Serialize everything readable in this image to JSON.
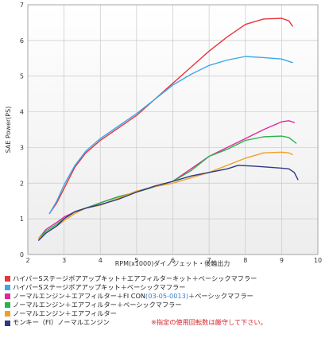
{
  "chart_data": {
    "type": "line",
    "title": "",
    "xlabel": "RPM(x1000)ダイノジェット・後輪出力",
    "ylabel": "SAE Power(PS)",
    "xlim": [
      2,
      10
    ],
    "ylim": [
      0,
      7
    ],
    "xticks": [
      "2",
      "3",
      "4",
      "5",
      "6",
      "7",
      "8",
      "9",
      "10"
    ],
    "yticks": [
      "0",
      "1",
      "2",
      "3",
      "4",
      "5",
      "6",
      "7"
    ],
    "grid": true,
    "legend_position": "bottom",
    "series": [
      {
        "name": "ハイパーSステージボアアップキット＋エアフィルターキット＋ベーシックマフラー",
        "color": "#e8353e",
        "points": [
          [
            2.6,
            1.15
          ],
          [
            2.8,
            1.45
          ],
          [
            3,
            1.85
          ],
          [
            3.3,
            2.45
          ],
          [
            3.6,
            2.85
          ],
          [
            4,
            3.2
          ],
          [
            4.5,
            3.55
          ],
          [
            5,
            3.9
          ],
          [
            5.5,
            4.35
          ],
          [
            6,
            4.8
          ],
          [
            6.5,
            5.25
          ],
          [
            7,
            5.7
          ],
          [
            7.5,
            6.1
          ],
          [
            8,
            6.45
          ],
          [
            8.5,
            6.6
          ],
          [
            9,
            6.62
          ],
          [
            9.2,
            6.55
          ],
          [
            9.3,
            6.4
          ]
        ]
      },
      {
        "name": "ハイパーSステージボアアップキット＋ベーシックマフラー",
        "color": "#3aa9ea",
        "points": [
          [
            2.6,
            1.15
          ],
          [
            2.8,
            1.5
          ],
          [
            3,
            1.95
          ],
          [
            3.3,
            2.5
          ],
          [
            3.6,
            2.9
          ],
          [
            4,
            3.25
          ],
          [
            4.5,
            3.6
          ],
          [
            5,
            3.95
          ],
          [
            5.5,
            4.35
          ],
          [
            6,
            4.75
          ],
          [
            6.5,
            5.05
          ],
          [
            7,
            5.3
          ],
          [
            7.5,
            5.45
          ],
          [
            8,
            5.55
          ],
          [
            8.5,
            5.52
          ],
          [
            9,
            5.48
          ],
          [
            9.3,
            5.38
          ]
        ]
      },
      {
        "name": "ノーマルエンジン＋エアフィルター＋FI CON（03-05-0013）＋ベーシックマフラー",
        "color": "#e0289a",
        "points": [
          [
            2.3,
            0.45
          ],
          [
            2.5,
            0.7
          ],
          [
            2.8,
            0.9
          ],
          [
            3,
            1.05
          ],
          [
            3.3,
            1.2
          ],
          [
            3.6,
            1.3
          ],
          [
            4,
            1.45
          ],
          [
            4.5,
            1.62
          ],
          [
            5,
            1.75
          ],
          [
            5.5,
            1.9
          ],
          [
            6,
            2.05
          ],
          [
            6.5,
            2.4
          ],
          [
            7,
            2.75
          ],
          [
            7.5,
            3.0
          ],
          [
            8,
            3.25
          ],
          [
            8.5,
            3.5
          ],
          [
            9,
            3.72
          ],
          [
            9.2,
            3.75
          ],
          [
            9.35,
            3.7
          ]
        ]
      },
      {
        "name": "ノーマルエンジン＋エアフィルター＋ベーシックマフラー",
        "color": "#2bb24c",
        "points": [
          [
            2.3,
            0.45
          ],
          [
            2.5,
            0.65
          ],
          [
            2.8,
            0.85
          ],
          [
            3,
            1.0
          ],
          [
            3.3,
            1.2
          ],
          [
            3.6,
            1.3
          ],
          [
            4,
            1.45
          ],
          [
            4.5,
            1.62
          ],
          [
            5,
            1.75
          ],
          [
            5.5,
            1.9
          ],
          [
            6,
            2.05
          ],
          [
            6.5,
            2.35
          ],
          [
            7,
            2.75
          ],
          [
            7.5,
            2.95
          ],
          [
            8,
            3.2
          ],
          [
            8.5,
            3.3
          ],
          [
            9,
            3.32
          ],
          [
            9.2,
            3.28
          ],
          [
            9.4,
            3.12
          ]
        ]
      },
      {
        "name": "ノーマルエンジン＋エアフィルター",
        "color": "#f0a028",
        "points": [
          [
            2.3,
            0.45
          ],
          [
            2.5,
            0.6
          ],
          [
            2.8,
            0.8
          ],
          [
            3,
            0.95
          ],
          [
            3.3,
            1.15
          ],
          [
            3.6,
            1.3
          ],
          [
            4,
            1.38
          ],
          [
            4.5,
            1.58
          ],
          [
            5,
            1.78
          ],
          [
            5.5,
            1.9
          ],
          [
            6,
            2.0
          ],
          [
            6.5,
            2.15
          ],
          [
            7,
            2.3
          ],
          [
            7.5,
            2.5
          ],
          [
            8,
            2.7
          ],
          [
            8.5,
            2.85
          ],
          [
            9,
            2.87
          ],
          [
            9.2,
            2.85
          ],
          [
            9.3,
            2.8
          ]
        ]
      },
      {
        "name": "モンキー（FI）ノーマルエンジン",
        "color": "#2a3a86",
        "points": [
          [
            2.3,
            0.4
          ],
          [
            2.5,
            0.6
          ],
          [
            2.8,
            0.8
          ],
          [
            3,
            1.0
          ],
          [
            3.3,
            1.2
          ],
          [
            3.6,
            1.3
          ],
          [
            4,
            1.4
          ],
          [
            4.5,
            1.55
          ],
          [
            5,
            1.75
          ],
          [
            5.5,
            1.92
          ],
          [
            6,
            2.05
          ],
          [
            6.5,
            2.2
          ],
          [
            7,
            2.3
          ],
          [
            7.5,
            2.4
          ],
          [
            7.8,
            2.5
          ],
          [
            8.2,
            2.48
          ],
          [
            8.6,
            2.45
          ],
          [
            9,
            2.42
          ],
          [
            9.2,
            2.4
          ],
          [
            9.35,
            2.3
          ],
          [
            9.45,
            2.1
          ]
        ]
      }
    ]
  },
  "legend": {
    "items": [
      {
        "color": "#e8353e",
        "label": "ハイパーSステージボアアップキット＋エアフィルターキット＋ベーシックマフラー"
      },
      {
        "color": "#3aa9ea",
        "label": "ハイパーSステージボアアップキット＋ベーシックマフラー"
      },
      {
        "color": "#e0289a",
        "label": "ノーマルエンジン＋エアフィルター＋FI CON",
        "code": "(03-05-0013)",
        "label_after": "＋ベーシックマフラー"
      },
      {
        "color": "#2bb24c",
        "label": "ノーマルエンジン＋エアフィルター＋ベーシックマフラー"
      },
      {
        "color": "#f0a028",
        "label": "ノーマルエンジン＋エアフィルター"
      },
      {
        "color": "#2a3a86",
        "label": "モンキー（FI）ノーマルエンジン"
      }
    ],
    "note": "※指定の使用回転数は厳守して下さい。"
  }
}
